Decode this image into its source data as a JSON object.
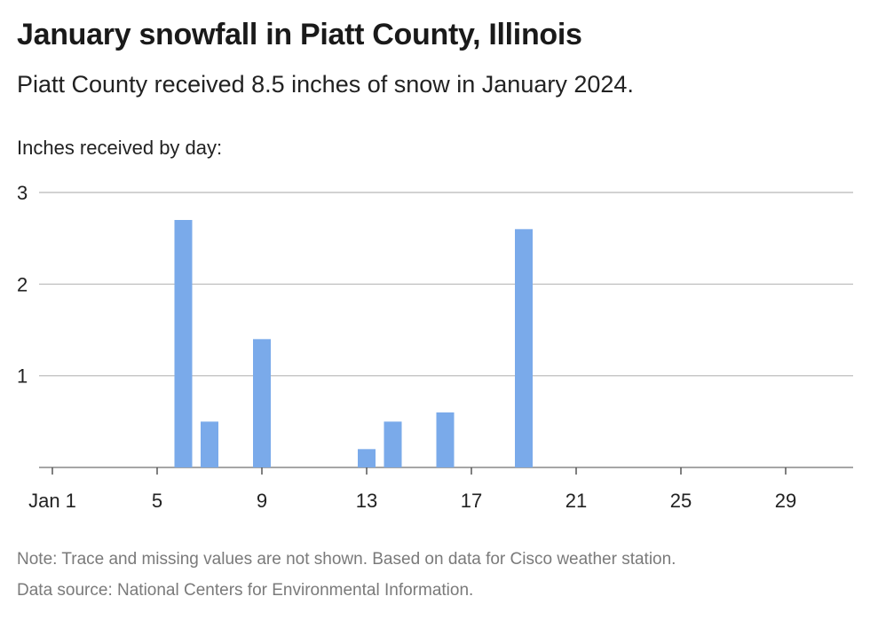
{
  "title": "January snowfall in Piatt County, Illinois",
  "subtitle": "Piatt County received 8.5 inches of snow in January 2024.",
  "note": "Note: Trace and missing values are not shown. Based on data for Cisco weather station.",
  "source": "Data source: National Centers for Environmental Information.",
  "chart_data": {
    "type": "bar",
    "ylabel": "Inches received by day:",
    "xlabel": "",
    "ylim": [
      0,
      3
    ],
    "xlim": [
      1,
      31
    ],
    "y_ticks": [
      "1",
      "2",
      "3"
    ],
    "y_tick_values": [
      1,
      2,
      3
    ],
    "x_ticks": [
      "Jan 1",
      "5",
      "9",
      "13",
      "17",
      "21",
      "25",
      "29"
    ],
    "x_tick_values": [
      1,
      5,
      9,
      13,
      17,
      21,
      25,
      29
    ],
    "grid": true,
    "bar_color": "#7aaaea",
    "days": [
      6,
      7,
      9,
      13,
      14,
      16,
      19
    ],
    "values": [
      2.7,
      0.5,
      1.4,
      0.2,
      0.5,
      0.6,
      2.6
    ]
  }
}
